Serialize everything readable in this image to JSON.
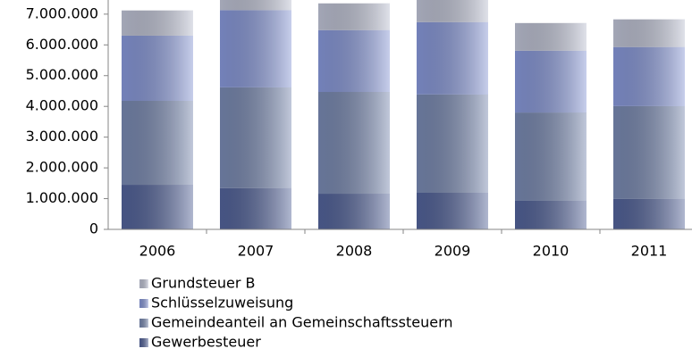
{
  "chart_data": {
    "type": "stacked_bar",
    "categories": [
      "2006",
      "2007",
      "2008",
      "2009",
      "2010",
      "2011"
    ],
    "series": [
      {
        "name": "Gewerbesteuer",
        "color": "#4f5f95",
        "values": [
          1450000,
          1340000,
          1160000,
          1190000,
          930000,
          990000
        ]
      },
      {
        "name": "Gemeindeanteil an Gemeinschaftssteuern",
        "color": "#7585ad",
        "values": [
          2730000,
          3280000,
          3310000,
          3200000,
          2870000,
          3020000
        ]
      },
      {
        "name": "Schlüsselzuweisung",
        "color": "#8393d3",
        "values": [
          2120000,
          2510000,
          2010000,
          2350000,
          2010000,
          1920000
        ]
      },
      {
        "name": "Grundsteuer B",
        "color": "#b9bdcf",
        "values": [
          820000,
          620000,
          870000,
          860000,
          900000,
          900000
        ]
      }
    ],
    "ylim": [
      0,
      7460000
    ],
    "yticks": [
      0,
      {
        "value": 1000000,
        "label": "1.000.000"
      },
      {
        "value": 2000000,
        "label": "2.000.000"
      },
      {
        "value": 3000000,
        "label": "3.000.000"
      },
      {
        "value": 4000000,
        "label": "4.000.000"
      },
      {
        "value": 5000000,
        "label": "5.000.000"
      },
      {
        "value": 6000000,
        "label": "6.000.000"
      },
      {
        "value": 7000000,
        "label": "7.000.000"
      }
    ],
    "legend": "bottom"
  }
}
